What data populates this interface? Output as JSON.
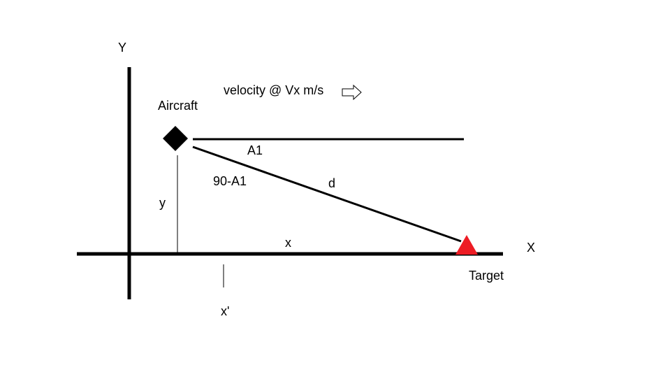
{
  "labels": {
    "y_axis": "Y",
    "x_axis": "X",
    "aircraft": "Aircraft",
    "velocity": "velocity @ Vx m/s",
    "angle": "A1",
    "complement_angle": "90-A1",
    "distance": "d",
    "height": "y",
    "horizontal": "x",
    "x_prime": "x'",
    "target": "Target"
  },
  "colors": {
    "target": "#ed1c24",
    "ink": "#000000"
  },
  "icons": {
    "aircraft": "diamond",
    "target": "triangle",
    "velocity": "right-arrow-outline"
  }
}
